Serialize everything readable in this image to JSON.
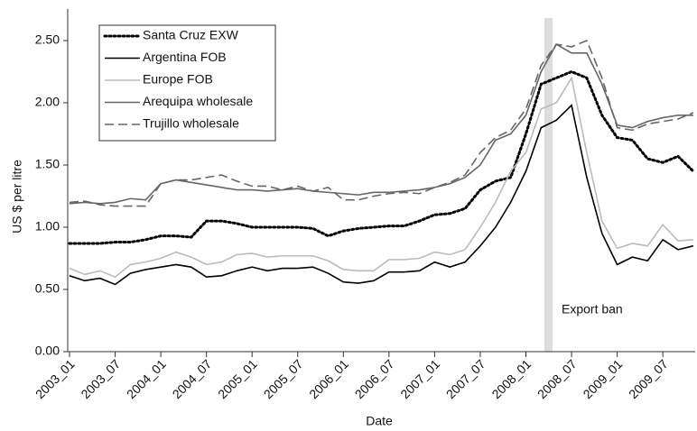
{
  "chart_data": {
    "type": "line",
    "y_label": "US $ per litre",
    "x_label": "Date",
    "annotation": "Export ban",
    "categories": [
      "2003_01",
      null,
      null,
      "2003_07",
      null,
      null,
      "2004_01",
      null,
      null,
      "2004_07",
      null,
      null,
      "2005_01",
      null,
      null,
      "2005_07",
      null,
      null,
      "2006_01",
      null,
      null,
      "2006_07",
      null,
      null,
      "2007_01",
      null,
      null,
      "2007_07",
      null,
      null,
      "2008_01",
      null,
      null,
      "2008_07",
      null,
      null,
      "2009_01",
      null,
      null,
      "2009_07",
      null,
      null
    ],
    "ylim": [
      0,
      2.5
    ],
    "yticks": [
      {
        "value": 0,
        "label": "0.00"
      },
      {
        "value": 0.5,
        "label": "0.50"
      },
      {
        "value": 1,
        "label": "1.00"
      },
      {
        "value": 1.5,
        "label": "1.50"
      },
      {
        "value": 2,
        "label": "2.00"
      },
      {
        "value": 2.5,
        "label": "2.50"
      }
    ],
    "grid": false,
    "series": [
      {
        "name": "Santa Cruz EXW",
        "color": "#000000",
        "style": "dotted",
        "values": [
          0.87,
          0.87,
          0.87,
          0.88,
          0.88,
          0.9,
          0.93,
          0.93,
          0.92,
          1.05,
          1.05,
          1.03,
          1.0,
          1.0,
          1.0,
          1.0,
          0.99,
          0.93,
          0.97,
          0.99,
          1.0,
          1.01,
          1.01,
          1.05,
          1.1,
          1.11,
          1.15,
          1.3,
          1.37,
          1.4,
          1.75,
          2.15,
          2.2,
          2.25,
          2.2,
          1.9,
          1.72,
          1.7,
          1.55,
          1.52,
          1.57,
          1.45
        ]
      },
      {
        "name": "Argentina FOB",
        "color": "#000000",
        "style": "solid",
        "values": [
          0.61,
          0.57,
          0.59,
          0.54,
          0.63,
          0.66,
          0.68,
          0.7,
          0.68,
          0.6,
          0.61,
          0.65,
          0.68,
          0.65,
          0.67,
          0.67,
          0.68,
          0.63,
          0.56,
          0.55,
          0.57,
          0.64,
          0.64,
          0.65,
          0.72,
          0.68,
          0.72,
          0.85,
          1.0,
          1.2,
          1.45,
          1.8,
          1.86,
          1.98,
          1.4,
          0.95,
          0.7,
          0.76,
          0.73,
          0.9,
          0.82,
          0.85
        ]
      },
      {
        "name": "Europe FOB",
        "color": "#bbbbbb",
        "style": "solid",
        "values": [
          0.67,
          0.62,
          0.65,
          0.6,
          0.7,
          0.72,
          0.75,
          0.8,
          0.76,
          0.7,
          0.72,
          0.78,
          0.79,
          0.76,
          0.77,
          0.77,
          0.77,
          0.73,
          0.66,
          0.65,
          0.65,
          0.74,
          0.74,
          0.75,
          0.8,
          0.78,
          0.82,
          1.0,
          1.2,
          1.45,
          1.6,
          1.95,
          2.0,
          2.2,
          1.6,
          1.05,
          0.83,
          0.87,
          0.85,
          1.02,
          0.89,
          0.9
        ]
      },
      {
        "name": "Arequipa wholesale",
        "color": "#666666",
        "style": "solid",
        "values": [
          1.19,
          1.2,
          1.19,
          1.2,
          1.23,
          1.22,
          1.35,
          1.38,
          1.36,
          1.34,
          1.32,
          1.3,
          1.3,
          1.29,
          1.3,
          1.31,
          1.29,
          1.28,
          1.27,
          1.26,
          1.28,
          1.28,
          1.29,
          1.3,
          1.32,
          1.35,
          1.4,
          1.5,
          1.7,
          1.75,
          1.9,
          2.25,
          2.47,
          2.4,
          2.4,
          2.15,
          1.82,
          1.8,
          1.85,
          1.88,
          1.9,
          1.9
        ]
      },
      {
        "name": "Trujillo wholesale",
        "color": "#666666",
        "style": "dashed",
        "values": [
          1.2,
          1.21,
          1.18,
          1.17,
          1.17,
          1.17,
          1.35,
          1.38,
          1.38,
          1.4,
          1.42,
          1.37,
          1.33,
          1.33,
          1.3,
          1.33,
          1.29,
          1.32,
          1.22,
          1.22,
          1.25,
          1.27,
          1.28,
          1.27,
          1.32,
          1.36,
          1.42,
          1.6,
          1.72,
          1.78,
          1.95,
          2.3,
          2.47,
          2.45,
          2.5,
          2.2,
          1.8,
          1.78,
          1.83,
          1.85,
          1.87,
          1.92
        ]
      }
    ]
  }
}
